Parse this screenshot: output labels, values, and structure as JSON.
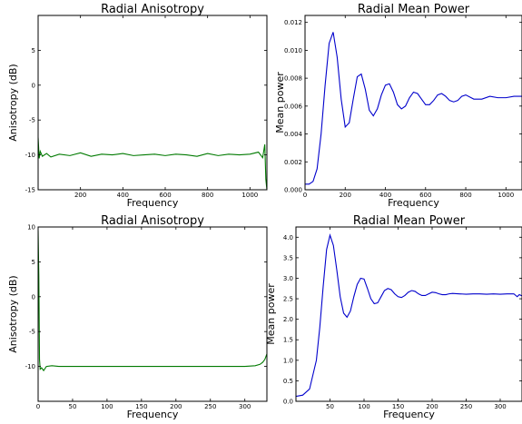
{
  "chart_data": [
    {
      "type": "line",
      "title": "Radial Anisotropy",
      "xlabel": "Frequency",
      "ylabel": "Anisotropy (dB)",
      "xlim": [
        0,
        1080
      ],
      "ylim": [
        -15,
        10
      ],
      "xticks": [
        200,
        400,
        600,
        800,
        1000
      ],
      "xtick_labels": [
        "200",
        "400",
        "600",
        "800",
        "1000"
      ],
      "yticks": [
        -15,
        -10,
        -5,
        0,
        5
      ],
      "ytick_labels": [
        "-15",
        "-10",
        "-5",
        "0",
        "5"
      ],
      "grid": false,
      "color": "#007a00",
      "series": [
        {
          "x": [
            0,
            5,
            10,
            20,
            40,
            60,
            100,
            150,
            200,
            250,
            300,
            350,
            400,
            450,
            500,
            550,
            600,
            650,
            700,
            750,
            800,
            850,
            900,
            950,
            1000,
            1040,
            1060,
            1070,
            1075,
            1080
          ],
          "y": [
            -7.5,
            -10.5,
            -9.5,
            -10.2,
            -9.8,
            -10.3,
            -9.9,
            -10.1,
            -9.7,
            -10.2,
            -9.9,
            -10.0,
            -9.8,
            -10.1,
            -10.0,
            -9.9,
            -10.1,
            -9.9,
            -10.0,
            -10.2,
            -9.8,
            -10.1,
            -9.9,
            -10.0,
            -9.9,
            -9.6,
            -10.4,
            -8.5,
            -13.5,
            -15.0
          ]
        }
      ]
    },
    {
      "type": "line",
      "title": "Radial Mean Power",
      "xlabel": "Frequency",
      "ylabel": "Mean power",
      "xlim": [
        0,
        1080
      ],
      "ylim": [
        0,
        0.0125
      ],
      "xticks": [
        0,
        200,
        400,
        600,
        800,
        1000
      ],
      "xtick_labels": [
        "0",
        "200",
        "400",
        "600",
        "800",
        "1000"
      ],
      "yticks": [
        0,
        0.002,
        0.004,
        0.006,
        0.008,
        0.01,
        0.012
      ],
      "ytick_labels": [
        "0.000",
        "0.002",
        "0.004",
        "0.006",
        "0.008",
        "0.010",
        "0.012"
      ],
      "grid": false,
      "color": "#0000cc",
      "series": [
        {
          "x": [
            0,
            20,
            40,
            60,
            80,
            100,
            120,
            140,
            160,
            180,
            200,
            220,
            240,
            260,
            280,
            300,
            320,
            340,
            360,
            380,
            400,
            420,
            440,
            460,
            480,
            500,
            520,
            540,
            560,
            580,
            600,
            620,
            640,
            660,
            680,
            700,
            720,
            740,
            760,
            780,
            800,
            840,
            880,
            920,
            960,
            1000,
            1040,
            1080
          ],
          "y": [
            0.0004,
            0.0004,
            0.0006,
            0.0015,
            0.004,
            0.0075,
            0.0105,
            0.0113,
            0.0095,
            0.0065,
            0.0045,
            0.0048,
            0.0065,
            0.0081,
            0.0083,
            0.0072,
            0.0057,
            0.0053,
            0.0058,
            0.0068,
            0.0075,
            0.0076,
            0.007,
            0.0061,
            0.0058,
            0.006,
            0.0066,
            0.007,
            0.0069,
            0.0065,
            0.0061,
            0.0061,
            0.0064,
            0.0068,
            0.0069,
            0.0067,
            0.0064,
            0.0063,
            0.0064,
            0.0067,
            0.0068,
            0.0065,
            0.0065,
            0.0067,
            0.0066,
            0.0066,
            0.0067,
            0.0067
          ]
        }
      ]
    },
    {
      "type": "line",
      "title": "Radial Anisotropy",
      "xlabel": "Frequency",
      "ylabel": "Anisotropy (dB)",
      "xlim": [
        0,
        332
      ],
      "ylim": [
        -15,
        10
      ],
      "xticks": [
        0,
        50,
        100,
        150,
        200,
        250,
        300
      ],
      "xtick_labels": [
        "0",
        "50",
        "100",
        "150",
        "200",
        "250",
        "300"
      ],
      "yticks": [
        -10,
        -5,
        0,
        5,
        10
      ],
      "ytick_labels": [
        "-10",
        "-5",
        "0",
        "5",
        "10"
      ],
      "grid": false,
      "color": "#007a00",
      "series": [
        {
          "x": [
            0,
            1,
            2,
            3,
            5,
            8,
            12,
            20,
            30,
            50,
            100,
            150,
            200,
            250,
            300,
            315,
            322,
            326,
            329,
            332
          ],
          "y": [
            9.5,
            3.0,
            -9.0,
            -10.4,
            -10.2,
            -10.6,
            -10.0,
            -9.9,
            -10.0,
            -10.0,
            -10.0,
            -10.0,
            -10.0,
            -10.0,
            -10.0,
            -9.9,
            -9.7,
            -9.4,
            -9.0,
            -8.2
          ]
        }
      ]
    },
    {
      "type": "line",
      "title": "Radial Mean Power",
      "xlabel": "Frequency",
      "ylabel": "Mean power",
      "xlim": [
        0,
        332
      ],
      "ylim": [
        0,
        4.25
      ],
      "xticks": [
        50,
        100,
        150,
        200,
        250,
        300
      ],
      "xtick_labels": [
        "50",
        "100",
        "150",
        "200",
        "250",
        "300"
      ],
      "yticks": [
        0,
        0.5,
        1,
        1.5,
        2,
        2.5,
        3,
        3.5,
        4
      ],
      "ytick_labels": [
        "0.0",
        "0.5",
        "1.0",
        "1.5",
        "2.0",
        "2.5",
        "3.0",
        "3.5",
        "4.0"
      ],
      "grid": false,
      "color": "#0000cc",
      "series": [
        {
          "x": [
            0,
            10,
            20,
            30,
            35,
            40,
            45,
            50,
            55,
            60,
            65,
            70,
            75,
            80,
            85,
            90,
            95,
            100,
            105,
            110,
            115,
            120,
            125,
            130,
            135,
            140,
            145,
            150,
            155,
            160,
            165,
            170,
            175,
            180,
            185,
            190,
            195,
            200,
            205,
            210,
            215,
            220,
            225,
            230,
            240,
            250,
            260,
            270,
            280,
            290,
            300,
            310,
            320,
            325,
            328,
            332
          ],
          "y": [
            0.12,
            0.15,
            0.3,
            1.0,
            1.8,
            2.8,
            3.7,
            4.05,
            3.8,
            3.2,
            2.55,
            2.15,
            2.05,
            2.2,
            2.55,
            2.85,
            3.0,
            2.98,
            2.75,
            2.5,
            2.38,
            2.4,
            2.55,
            2.7,
            2.75,
            2.72,
            2.62,
            2.55,
            2.53,
            2.58,
            2.66,
            2.7,
            2.68,
            2.62,
            2.58,
            2.58,
            2.62,
            2.66,
            2.65,
            2.62,
            2.6,
            2.6,
            2.62,
            2.63,
            2.62,
            2.61,
            2.62,
            2.62,
            2.61,
            2.62,
            2.61,
            2.62,
            2.62,
            2.55,
            2.6,
            2.57
          ]
        }
      ]
    }
  ]
}
